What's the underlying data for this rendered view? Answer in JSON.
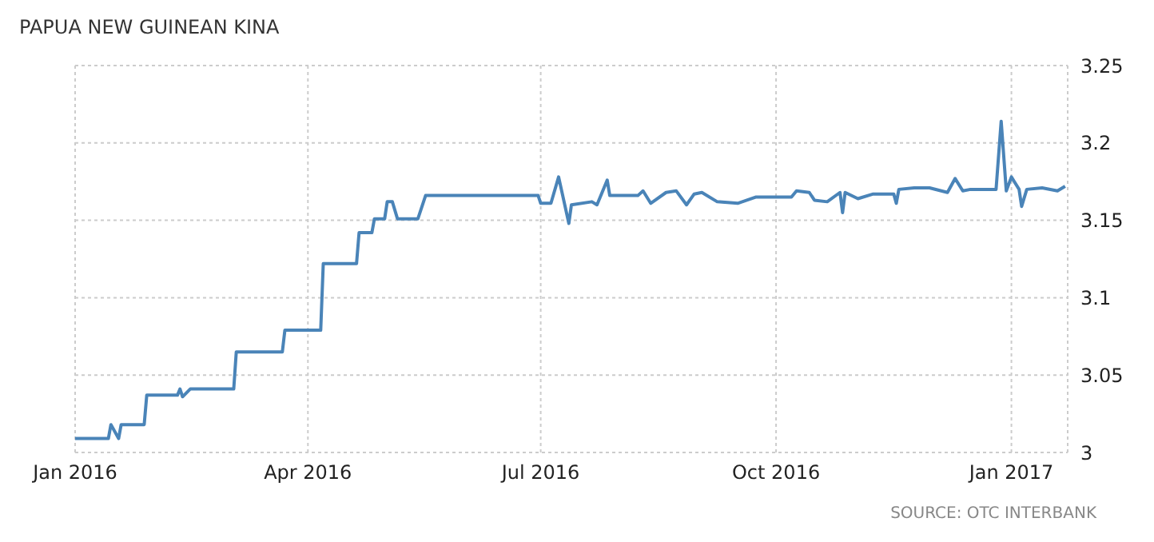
{
  "chart_data": {
    "type": "line",
    "title": "PAPUA NEW GUINEAN KINA",
    "annotations": [
      "SOURCE: OTC INTERBANK"
    ],
    "x": [
      "2016-01-01",
      "2016-01-14",
      "2016-01-15",
      "2016-01-18",
      "2016-01-19",
      "2016-01-28",
      "2016-01-29",
      "2016-02-10",
      "2016-02-11",
      "2016-02-12",
      "2016-02-15",
      "2016-03-03",
      "2016-03-04",
      "2016-03-22",
      "2016-03-23",
      "2016-04-06",
      "2016-04-07",
      "2016-04-20",
      "2016-04-21",
      "2016-04-26",
      "2016-04-27",
      "2016-05-01",
      "2016-05-02",
      "2016-05-04",
      "2016-05-06",
      "2016-05-14",
      "2016-05-17",
      "2016-06-30",
      "2016-07-01",
      "2016-07-05",
      "2016-07-08",
      "2016-07-12",
      "2016-07-13",
      "2016-07-21",
      "2016-07-23",
      "2016-07-27",
      "2016-07-28",
      "2016-08-08",
      "2016-08-10",
      "2016-08-13",
      "2016-08-19",
      "2016-08-23",
      "2016-08-27",
      "2016-08-30",
      "2016-09-02",
      "2016-09-08",
      "2016-09-16",
      "2016-09-23",
      "2016-10-07",
      "2016-10-09",
      "2016-10-14",
      "2016-10-16",
      "2016-10-21",
      "2016-10-26",
      "2016-10-27",
      "2016-10-28",
      "2016-11-02",
      "2016-11-08",
      "2016-11-16",
      "2016-11-17",
      "2016-11-18",
      "2016-11-24",
      "2016-11-30",
      "2016-12-07",
      "2016-12-10",
      "2016-12-13",
      "2016-12-16",
      "2016-12-26",
      "2016-12-28",
      "2016-12-30",
      "2017-01-01",
      "2017-01-04",
      "2017-01-05",
      "2017-01-07",
      "2017-01-13",
      "2017-01-19",
      "2017-01-22"
    ],
    "series": [
      {
        "color": "#4a84b8",
        "values": [
          3.009,
          3.009,
          3.018,
          3.009,
          3.018,
          3.018,
          3.037,
          3.037,
          3.041,
          3.036,
          3.041,
          3.041,
          3.065,
          3.065,
          3.079,
          3.079,
          3.122,
          3.122,
          3.142,
          3.142,
          3.151,
          3.151,
          3.162,
          3.162,
          3.151,
          3.151,
          3.166,
          3.166,
          3.161,
          3.161,
          3.178,
          3.148,
          3.16,
          3.162,
          3.16,
          3.176,
          3.166,
          3.166,
          3.169,
          3.161,
          3.168,
          3.169,
          3.16,
          3.167,
          3.168,
          3.162,
          3.161,
          3.165,
          3.165,
          3.169,
          3.168,
          3.163,
          3.162,
          3.168,
          3.155,
          3.168,
          3.164,
          3.167,
          3.167,
          3.161,
          3.17,
          3.171,
          3.171,
          3.168,
          3.177,
          3.169,
          3.17,
          3.17,
          3.214,
          3.169,
          3.178,
          3.17,
          3.159,
          3.17,
          3.171,
          3.169,
          3.172
        ]
      }
    ],
    "xlim": [
      "2016-01-01",
      "2017-01-23"
    ],
    "xticks": [
      {
        "value": "2016-01-01",
        "label": "Jan 2016"
      },
      {
        "value": "2016-04-01",
        "label": "Apr 2016"
      },
      {
        "value": "2016-07-01",
        "label": "Jul 2016"
      },
      {
        "value": "2016-10-01",
        "label": "Oct 2016"
      },
      {
        "value": "2017-01-01",
        "label": "Jan 2017"
      }
    ],
    "ylim": [
      3,
      3.25
    ],
    "yticks": [
      3,
      3.05,
      3.1,
      3.15,
      3.2,
      3.25
    ],
    "grid": true,
    "marker": "none",
    "line_style": "solid"
  }
}
